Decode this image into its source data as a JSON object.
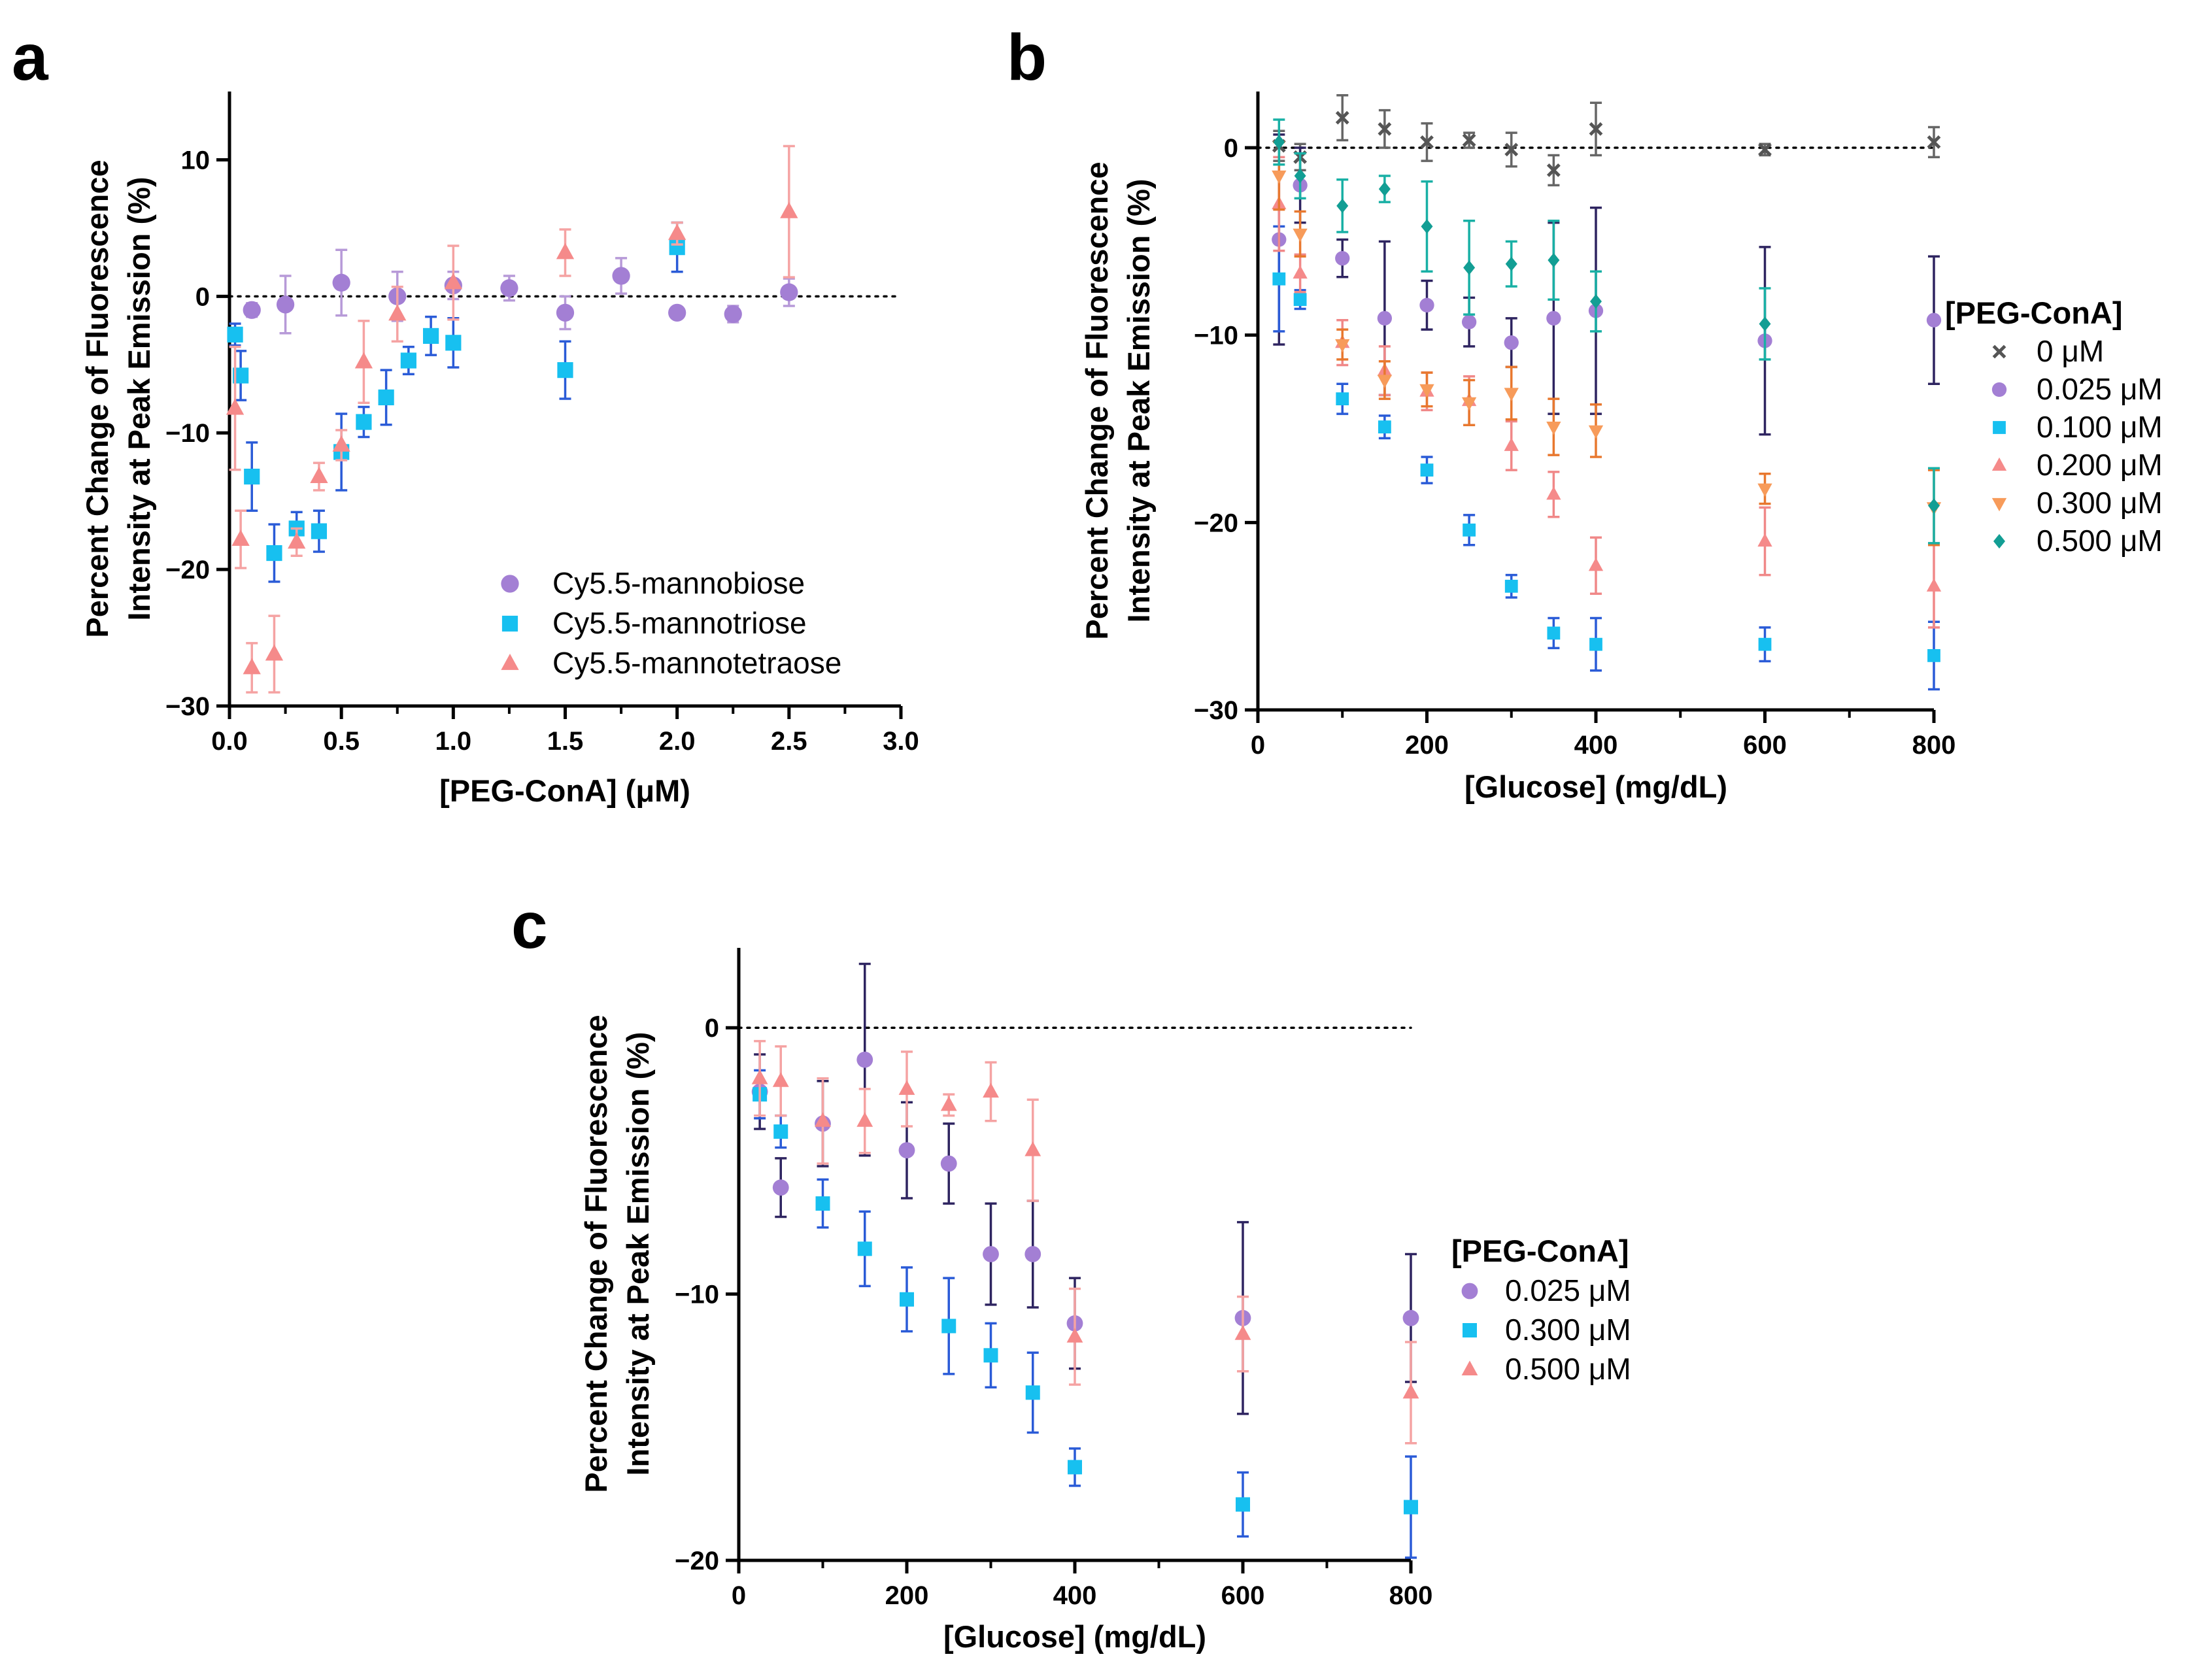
{
  "chart_data": [
    {
      "panel": "a",
      "type": "scatter",
      "xlabel": "[PEG-ConA] (μM)",
      "ylabel": [
        "Percent Change of Fluorescence",
        "Intensity at Peak Emission (%)"
      ],
      "xlim": [
        0,
        3
      ],
      "ylim": [
        -30,
        15
      ],
      "xticks": [
        0,
        0.5,
        1,
        1.5,
        2,
        2.5,
        3
      ],
      "xtick_labels": [
        "0.0",
        "0.5",
        "1.0",
        "1.5",
        "2.0",
        "2.5",
        "3.0"
      ],
      "yticks": [
        -30,
        -20,
        -10,
        0,
        10
      ],
      "ytick_labels": [
        "−30",
        "−20",
        "−10",
        "0",
        "10"
      ],
      "zero_line": true,
      "legend_position": "bottom-right",
      "series": [
        {
          "name": "Cy5.5-mannobiose",
          "marker": "circle",
          "color": "#a37fd4",
          "errcolor": "#b79ad8",
          "points": [
            [
              0.1,
              -1,
              0.5
            ],
            [
              0.25,
              -0.6,
              2.1
            ],
            [
              0.5,
              1,
              2.4
            ],
            [
              0.75,
              0,
              1.8
            ],
            [
              1.0,
              0.8,
              1.0
            ],
            [
              1.25,
              0.6,
              0.9
            ],
            [
              1.5,
              -1.2,
              1.2
            ],
            [
              1.75,
              1.5,
              1.3
            ],
            [
              2.0,
              -1.2,
              0
            ],
            [
              2.25,
              -1.3,
              0.6
            ],
            [
              2.5,
              0.3,
              1.0
            ]
          ]
        },
        {
          "name": "Cy5.5-mannotriose",
          "marker": "square",
          "color": "#17c0f0",
          "errcolor": "#2a5bd7",
          "points": [
            [
              0.025,
              -2.8,
              0.8
            ],
            [
              0.05,
              -5.8,
              1.8
            ],
            [
              0.1,
              -13.2,
              2.5
            ],
            [
              0.2,
              -18.8,
              2.1
            ],
            [
              0.3,
              -17,
              1.2
            ],
            [
              0.4,
              -17.2,
              1.5
            ],
            [
              0.5,
              -11.4,
              2.8
            ],
            [
              0.6,
              -9.2,
              1.1
            ],
            [
              0.7,
              -7.4,
              2.0
            ],
            [
              0.8,
              -4.7,
              1.0
            ],
            [
              0.9,
              -2.9,
              1.4
            ],
            [
              1.0,
              -3.4,
              1.8
            ],
            [
              1.5,
              -5.4,
              2.1
            ],
            [
              2.0,
              3.6,
              1.8
            ]
          ]
        },
        {
          "name": "Cy5.5-mannotetraose",
          "marker": "triangle",
          "color": "#f58a8a",
          "errcolor": "#f5a3a3",
          "points": [
            [
              0.025,
              -8.2,
              4.5
            ],
            [
              0.05,
              -17.8,
              2.1
            ],
            [
              0.1,
              -27.2,
              1.8
            ],
            [
              0.2,
              -26.2,
              2.8
            ],
            [
              0.3,
              -18,
              1.0
            ],
            [
              0.4,
              -13.2,
              1.0
            ],
            [
              0.5,
              -10.9,
              1.1
            ],
            [
              0.6,
              -4.8,
              3.0
            ],
            [
              0.75,
              -1.3,
              2.0
            ],
            [
              1.0,
              1,
              2.7
            ],
            [
              1.5,
              3.2,
              1.7
            ],
            [
              2.0,
              4.6,
              0.8
            ],
            [
              2.5,
              6.2,
              4.8
            ]
          ]
        }
      ]
    },
    {
      "panel": "b",
      "type": "scatter",
      "xlabel": "[Glucose] (mg/dL)",
      "ylabel": [
        "Percent Change of Fluorescence",
        "Intensity at Peak Emission (%)"
      ],
      "xlim": [
        0,
        800
      ],
      "ylim": [
        -30,
        3
      ],
      "xticks": [
        0,
        200,
        400,
        600,
        800
      ],
      "xtick_labels": [
        "0",
        "200",
        "400",
        "600",
        "800"
      ],
      "yticks": [
        -30,
        -20,
        -10,
        0
      ],
      "ytick_labels": [
        "−30",
        "−20",
        "−10",
        "0"
      ],
      "zero_line": true,
      "legend_title": "[PEG-ConA]",
      "legend_position": "right",
      "series": [
        {
          "name": "0 μM",
          "marker": "x",
          "color": "#555555",
          "errcolor": "#666666",
          "points": [
            [
              25,
              0.1,
              0.8
            ],
            [
              50,
              -0.5,
              0.7
            ],
            [
              100,
              1.6,
              1.2
            ],
            [
              150,
              1,
              1.0
            ],
            [
              200,
              0.3,
              1.0
            ],
            [
              250,
              0.4,
              0.4
            ],
            [
              300,
              -0.1,
              0.9
            ],
            [
              350,
              -1.2,
              0.8
            ],
            [
              400,
              1,
              1.4
            ],
            [
              600,
              -0.1,
              0.3
            ],
            [
              800,
              0.3,
              0.8
            ]
          ]
        },
        {
          "name": "0.025 μM",
          "marker": "circle",
          "color": "#a37fd4",
          "errcolor": "#2e2460",
          "points": [
            [
              25,
              -4.9,
              5.6
            ],
            [
              50,
              -2,
              2.0
            ],
            [
              100,
              -5.9,
              1.0
            ],
            [
              150,
              -9.1,
              4.1
            ],
            [
              200,
              -8.4,
              1.3
            ],
            [
              250,
              -9.3,
              1.3
            ],
            [
              300,
              -10.4,
              1.3
            ],
            [
              350,
              -9.1,
              5.1
            ],
            [
              400,
              -8.7,
              5.5
            ],
            [
              600,
              -10.3,
              5.0
            ],
            [
              800,
              -9.2,
              3.4
            ]
          ]
        },
        {
          "name": "0.100 μM",
          "marker": "square",
          "color": "#17c0f0",
          "errcolor": "#2a5bd7",
          "points": [
            [
              25,
              -7,
              2.8
            ],
            [
              50,
              -8.1,
              0.5
            ],
            [
              100,
              -13.4,
              0.8
            ],
            [
              150,
              -14.9,
              0.6
            ],
            [
              200,
              -17.2,
              0.7
            ],
            [
              250,
              -20.4,
              0.8
            ],
            [
              300,
              -23.4,
              0.6
            ],
            [
              350,
              -25.9,
              0.8
            ],
            [
              400,
              -26.5,
              1.4
            ],
            [
              600,
              -26.5,
              0.9
            ],
            [
              800,
              -27.1,
              1.8
            ]
          ]
        },
        {
          "name": "0.200 μM",
          "marker": "triangle",
          "color": "#f58a8a",
          "errcolor": "#f08888",
          "points": [
            [
              25,
              -3,
              2.5
            ],
            [
              50,
              -6.7,
              1.0
            ],
            [
              100,
              -10.4,
              1.2
            ],
            [
              150,
              -11.9,
              1.3
            ],
            [
              200,
              -13,
              1.0
            ],
            [
              250,
              -13.5,
              1.3
            ],
            [
              300,
              -15.9,
              1.3
            ],
            [
              350,
              -18.5,
              1.2
            ],
            [
              400,
              -22.3,
              1.5
            ],
            [
              600,
              -21,
              1.8
            ],
            [
              800,
              -23.4,
              2.2
            ]
          ]
        },
        {
          "name": "0.300 μM",
          "marker": "triangle-down",
          "color": "#f79b5a",
          "errcolor": "#e8782f",
          "points": [
            [
              25,
              -1.5,
              1.8
            ],
            [
              50,
              -4.6,
              1.2
            ],
            [
              100,
              -10.5,
              0.8
            ],
            [
              150,
              -12.4,
              1.0
            ],
            [
              200,
              -12.9,
              0.9
            ],
            [
              250,
              -13.6,
              1.2
            ],
            [
              300,
              -13.1,
              1.4
            ],
            [
              350,
              -14.9,
              1.5
            ],
            [
              400,
              -15.1,
              1.4
            ],
            [
              600,
              -18.2,
              0.8
            ],
            [
              800,
              -19.2,
              2.0
            ]
          ]
        },
        {
          "name": "0.500 μM",
          "marker": "diamond",
          "color": "#129e94",
          "errcolor": "#19b0a5",
          "points": [
            [
              25,
              0.3,
              1.2
            ],
            [
              50,
              -1.5,
              1.2
            ],
            [
              100,
              -3.1,
              1.4
            ],
            [
              150,
              -2.2,
              0.7
            ],
            [
              200,
              -4.2,
              2.4
            ],
            [
              250,
              -6.4,
              2.5
            ],
            [
              300,
              -6.2,
              1.2
            ],
            [
              350,
              -6,
              2.1
            ],
            [
              400,
              -8.2,
              1.6
            ],
            [
              600,
              -9.4,
              1.9
            ],
            [
              800,
              -19.1,
              2.0
            ]
          ]
        }
      ]
    },
    {
      "panel": "c",
      "type": "scatter",
      "xlabel": "[Glucose] (mg/dL)",
      "ylabel": [
        "Percent Change of Fluorescence",
        "Intensity at Peak Emission (%)"
      ],
      "xlim": [
        0,
        800
      ],
      "ylim": [
        -20,
        3
      ],
      "xticks": [
        0,
        200,
        400,
        600,
        800
      ],
      "xtick_labels": [
        "0",
        "200",
        "400",
        "600",
        "800"
      ],
      "yticks": [
        -20,
        -10,
        0
      ],
      "ytick_labels": [
        "−20",
        "−10",
        "0"
      ],
      "zero_line": true,
      "legend_title": "[PEG-ConA]",
      "legend_position": "right",
      "series": [
        {
          "name": "0.025 μM",
          "marker": "circle",
          "color": "#a37fd4",
          "errcolor": "#2e2460",
          "points": [
            [
              25,
              -2.4,
              1.4
            ],
            [
              50,
              -6,
              1.1
            ],
            [
              100,
              -3.6,
              1.6
            ],
            [
              150,
              -1.2,
              3.6
            ],
            [
              200,
              -4.6,
              1.8
            ],
            [
              250,
              -5.1,
              1.5
            ],
            [
              300,
              -8.5,
              1.9
            ],
            [
              350,
              -8.5,
              2.0
            ],
            [
              400,
              -11.1,
              1.7
            ],
            [
              600,
              -10.9,
              3.6
            ],
            [
              800,
              -10.9,
              2.4
            ]
          ]
        },
        {
          "name": "0.300 μM",
          "marker": "square",
          "color": "#17c0f0",
          "errcolor": "#2a5bd7",
          "points": [
            [
              25,
              -2.5,
              0.9
            ],
            [
              50,
              -3.9,
              0.6
            ],
            [
              100,
              -6.6,
              0.9
            ],
            [
              150,
              -8.3,
              1.4
            ],
            [
              200,
              -10.2,
              1.2
            ],
            [
              250,
              -11.2,
              1.8
            ],
            [
              300,
              -12.3,
              1.2
            ],
            [
              350,
              -13.7,
              1.5
            ],
            [
              400,
              -16.5,
              0.7
            ],
            [
              600,
              -17.9,
              1.2
            ],
            [
              800,
              -18,
              1.9
            ]
          ]
        },
        {
          "name": "0.500 μM",
          "marker": "triangle",
          "color": "#f58a8a",
          "errcolor": "#f5a3a3",
          "points": [
            [
              25,
              -1.9,
              1.4
            ],
            [
              50,
              -2,
              1.3
            ],
            [
              100,
              -3.5,
              1.6
            ],
            [
              150,
              -3.5,
              1.2
            ],
            [
              200,
              -2.3,
              1.4
            ],
            [
              250,
              -2.9,
              0.4
            ],
            [
              300,
              -2.4,
              1.1
            ],
            [
              350,
              -4.6,
              1.9
            ],
            [
              400,
              -11.6,
              1.8
            ],
            [
              600,
              -11.5,
              1.4
            ],
            [
              800,
              -13.7,
              1.9
            ]
          ]
        }
      ]
    }
  ]
}
